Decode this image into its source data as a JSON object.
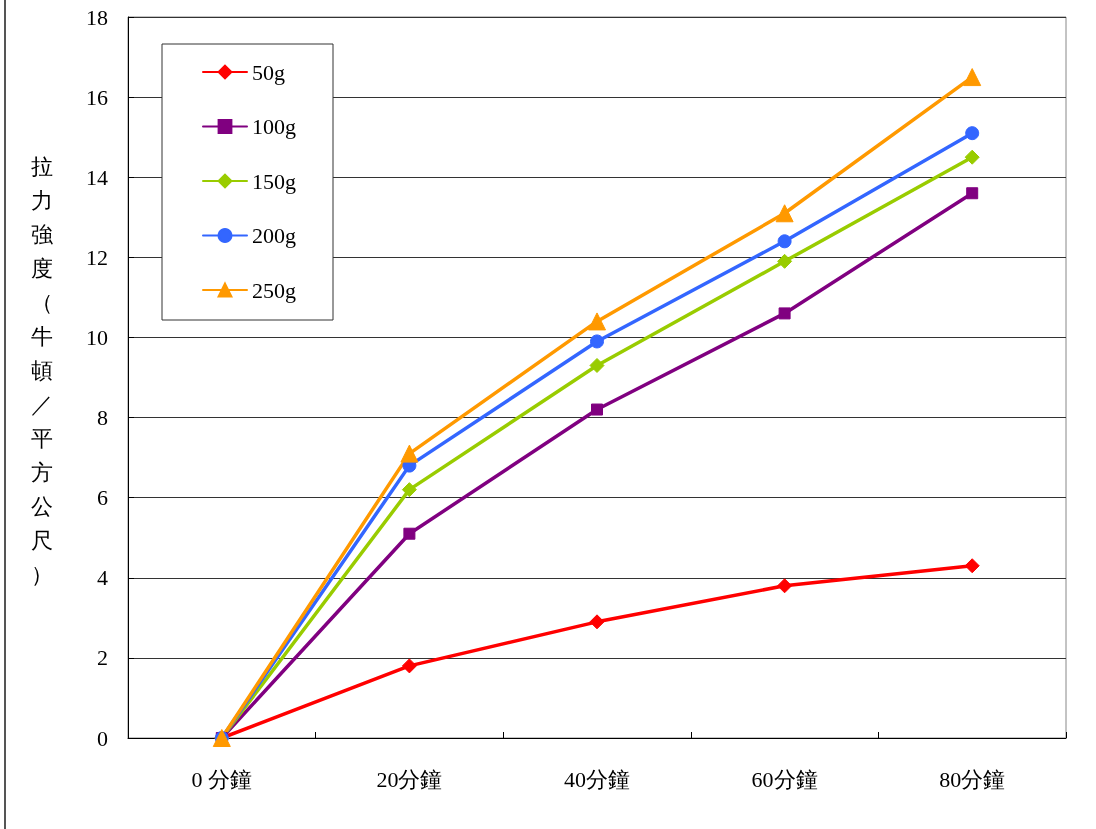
{
  "chart_data": {
    "type": "line",
    "ylabel": "拉力強度（牛頓／平方公尺）",
    "categories": [
      "0 分鐘",
      "20分鐘",
      "40分鐘",
      "60分鐘",
      "80分鐘"
    ],
    "series": [
      {
        "name": "50g",
        "color": "#ff0000",
        "marker": "diamond",
        "values": [
          0,
          1.8,
          2.9,
          3.8,
          4.3
        ]
      },
      {
        "name": "100g",
        "color": "#800080",
        "marker": "square",
        "values": [
          0,
          5.1,
          8.2,
          10.6,
          13.6
        ]
      },
      {
        "name": "150g",
        "color": "#99cc00",
        "marker": "diamond",
        "values": [
          0,
          6.2,
          9.3,
          11.9,
          14.5
        ]
      },
      {
        "name": "200g",
        "color": "#3366ff",
        "marker": "circle",
        "values": [
          0,
          6.8,
          9.9,
          12.4,
          15.1
        ]
      },
      {
        "name": "250g",
        "color": "#ff9900",
        "marker": "triangle",
        "values": [
          0,
          7.1,
          10.4,
          13.1,
          16.5
        ]
      }
    ],
    "ylim": [
      0,
      18
    ],
    "yticks": [
      0,
      2,
      4,
      6,
      8,
      10,
      12,
      14,
      16,
      18
    ],
    "grid": "y",
    "legend": "top left",
    "line_style": "solid"
  }
}
